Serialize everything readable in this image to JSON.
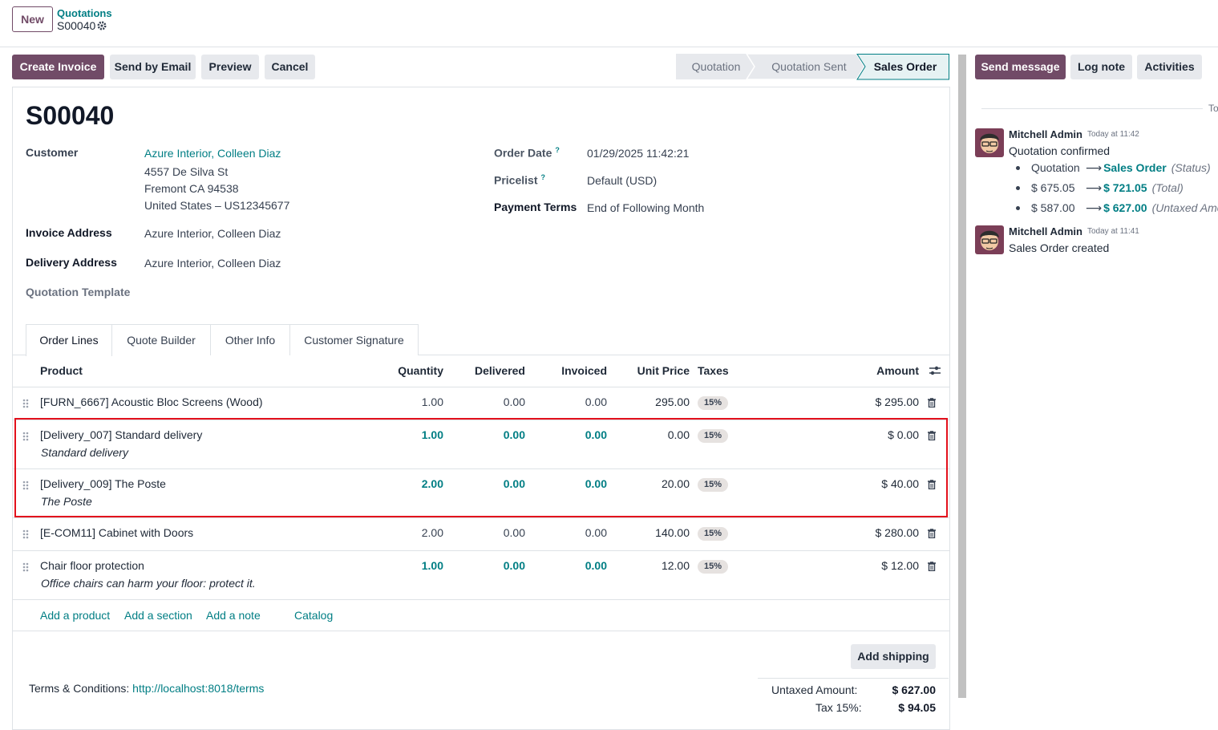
{
  "breadcrumb": {
    "new_button": "New",
    "parent": "Quotations",
    "current": "S00040"
  },
  "actions": [
    "Create Invoice",
    "Send by Email",
    "Preview",
    "Cancel"
  ],
  "statusbar": [
    "Quotation",
    "Quotation Sent",
    "Sales Order"
  ],
  "chatter_buttons": [
    "Send message",
    "Log note",
    "Activities"
  ],
  "form": {
    "name": "S00040",
    "customer": {
      "label": "Customer",
      "value": "Azure Interior, Colleen Diaz",
      "address": [
        "4557 De Silva St",
        "Fremont CA 94538",
        "United States – US12345677"
      ]
    },
    "invoice_address": {
      "label": "Invoice Address",
      "value": "Azure Interior, Colleen Diaz"
    },
    "delivery_address": {
      "label": "Delivery Address",
      "value": "Azure Interior, Colleen Diaz"
    },
    "quotation_template": {
      "label": "Quotation Template"
    },
    "order_date": {
      "label": "Order Date",
      "help": "?",
      "value": "01/29/2025 11:42:21"
    },
    "pricelist": {
      "label": "Pricelist",
      "help": "?",
      "value": "Default (USD)"
    },
    "payment_terms": {
      "label": "Payment Terms",
      "value": "End of Following Month"
    }
  },
  "tabs": [
    "Order Lines",
    "Quote Builder",
    "Other Info",
    "Customer Signature"
  ],
  "table": {
    "headers": [
      "Product",
      "Quantity",
      "Delivered",
      "Invoiced",
      "Unit Price",
      "Taxes",
      "Amount"
    ],
    "rows": [
      {
        "product": "[FURN_6667] Acoustic Bloc Screens (Wood)",
        "quantity": "1.00",
        "delivered": "0.00",
        "invoiced": "0.00",
        "unit_price": "295.00",
        "tax": "15%",
        "amount": "$ 295.00"
      },
      {
        "product": "[Delivery_007] Standard delivery",
        "description": "Standard delivery",
        "quantity": "1.00",
        "delivered": "0.00",
        "invoiced": "0.00",
        "unit_price": "0.00",
        "tax": "15%",
        "amount": "$ 0.00"
      },
      {
        "product": "[Delivery_009] The Poste",
        "description": "The Poste",
        "quantity": "2.00",
        "delivered": "0.00",
        "invoiced": "0.00",
        "unit_price": "20.00",
        "tax": "15%",
        "amount": "$ 40.00"
      },
      {
        "product": "[E-COM11] Cabinet with Doors",
        "quantity": "2.00",
        "delivered": "0.00",
        "invoiced": "0.00",
        "unit_price": "140.00",
        "tax": "15%",
        "amount": "$ 280.00"
      },
      {
        "product": "Chair floor protection",
        "description": "Office chairs can harm your floor: protect it.",
        "quantity": "1.00",
        "delivered": "0.00",
        "invoiced": "0.00",
        "unit_price": "12.00",
        "tax": "15%",
        "amount": "$ 12.00"
      }
    ],
    "add_links": [
      "Add a product",
      "Add a section",
      "Add a note",
      "Catalog"
    ]
  },
  "add_shipping": "Add shipping",
  "terms": {
    "label": "Terms & Conditions:",
    "link": "http://localhost:8018/terms"
  },
  "totals": [
    {
      "label": "Untaxed Amount:",
      "value": "$ 627.00"
    },
    {
      "label": "Tax 15%:",
      "value": "$ 94.05"
    }
  ],
  "chatter": {
    "separator": "Today",
    "messages": [
      {
        "author": "Mitchell Admin",
        "time": "Today at 11:42",
        "body": "Quotation confirmed",
        "changes": [
          {
            "old": "Quotation",
            "new": "Sales Order",
            "field": "(Status)"
          },
          {
            "old": "$ 675.05",
            "new": "$ 721.05",
            "field": "(Total)"
          },
          {
            "old": "$ 587.00",
            "new": "$ 627.00",
            "field": "(Untaxed Amount)"
          }
        ]
      },
      {
        "author": "Mitchell Admin",
        "time": "Today at 11:41",
        "body": "Sales Order created"
      }
    ]
  }
}
